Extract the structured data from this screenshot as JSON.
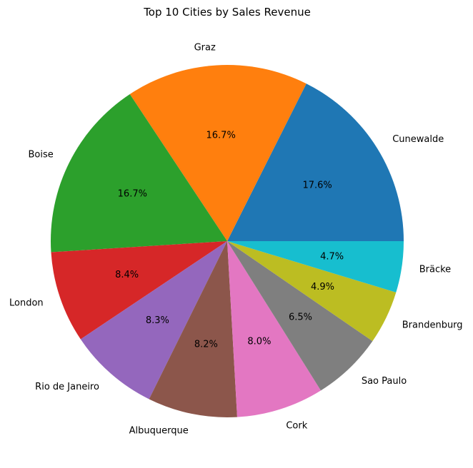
{
  "chart_data": {
    "type": "pie",
    "title": "Top 10 Cities by Sales Revenue",
    "start_angle_deg": 0,
    "direction": "counterclockwise",
    "slices": [
      {
        "label": "Cunewalde",
        "value": 17.6,
        "pct_label": "17.6%",
        "color": "#1f77b4"
      },
      {
        "label": "Graz",
        "value": 16.7,
        "pct_label": "16.7%",
        "color": "#ff7f0e"
      },
      {
        "label": "Boise",
        "value": 16.7,
        "pct_label": "16.7%",
        "color": "#2ca02c"
      },
      {
        "label": "London",
        "value": 8.4,
        "pct_label": "8.4%",
        "color": "#d62728"
      },
      {
        "label": "Rio de Janeiro",
        "value": 8.3,
        "pct_label": "8.3%",
        "color": "#9467bd"
      },
      {
        "label": "Albuquerque",
        "value": 8.2,
        "pct_label": "8.2%",
        "color": "#8c564b"
      },
      {
        "label": "Cork",
        "value": 8.0,
        "pct_label": "8.0%",
        "color": "#e377c2"
      },
      {
        "label": "Sao Paulo",
        "value": 6.5,
        "pct_label": "6.5%",
        "color": "#7f7f7f"
      },
      {
        "label": "Brandenburg",
        "value": 4.9,
        "pct_label": "4.9%",
        "color": "#bcbd22"
      },
      {
        "label": "Bräcke",
        "value": 4.7,
        "pct_label": "4.7%",
        "color": "#17becf"
      }
    ]
  }
}
